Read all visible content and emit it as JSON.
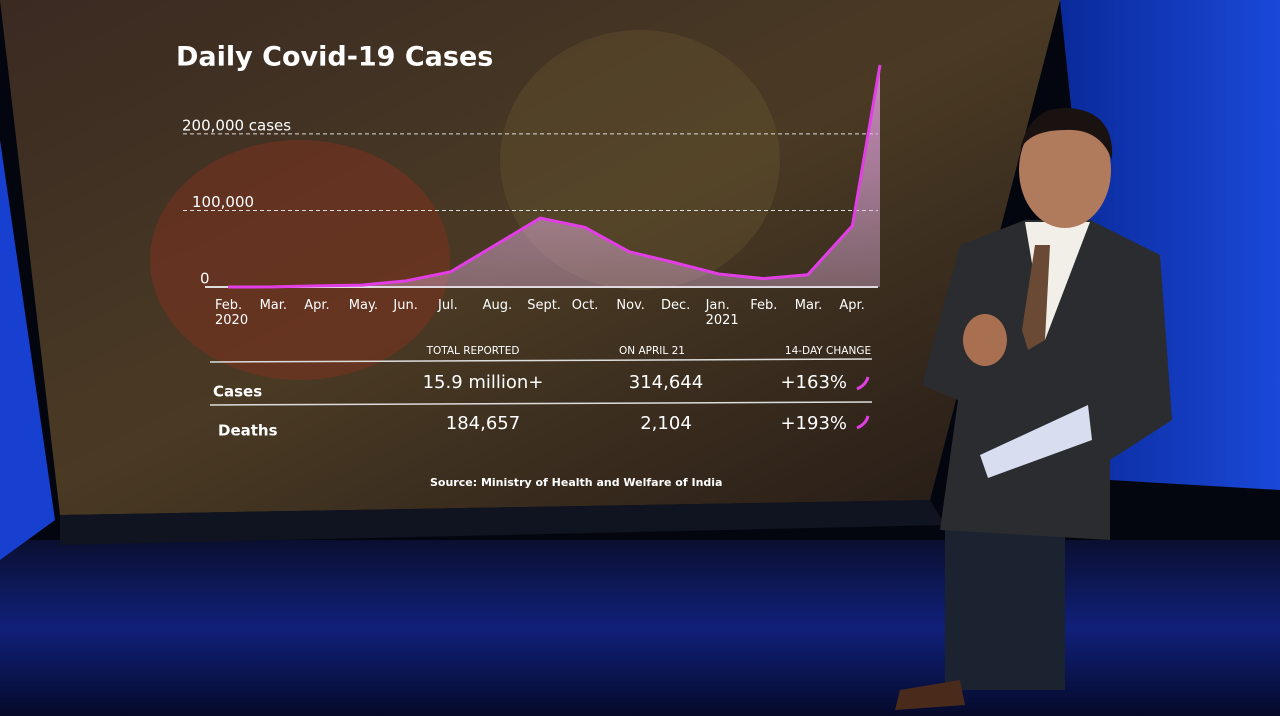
{
  "chart_data": {
    "type": "area",
    "title": "Daily Covid-19 Cases",
    "categories": [
      "Feb.\n2020",
      "Mar.",
      "Apr.",
      "May.",
      "Jun.",
      "Jul.",
      "Aug.",
      "Sept.",
      "Oct.",
      "Nov.",
      "Dec.",
      "Jan.\n2021",
      "Feb.",
      "Mar.",
      "Apr.",
      null
    ],
    "values": [
      0,
      100,
      1500,
      2500,
      8000,
      20000,
      55000,
      90000,
      78000,
      46000,
      32000,
      17000,
      11000,
      16000,
      80000,
      290000
    ],
    "color": "#e23ee6",
    "ylim": [
      0,
      290000
    ],
    "yticks": [
      0,
      {
        "value": 100000,
        "label": "100,000"
      },
      {
        "value": 200000,
        "label": "200,000 cases"
      }
    ],
    "grid": true
  },
  "table": {
    "headers": [
      "TOTAL REPORTED",
      "ON APRIL 21",
      "14-DAY CHANGE"
    ],
    "rows": [
      [
        "Cases",
        "15.9 million+",
        "314,644",
        "+163%"
      ],
      [
        "Deaths",
        "184,657",
        "2,104",
        "+193%"
      ]
    ]
  },
  "source": "Source: Ministry of Health and Welfare of India"
}
